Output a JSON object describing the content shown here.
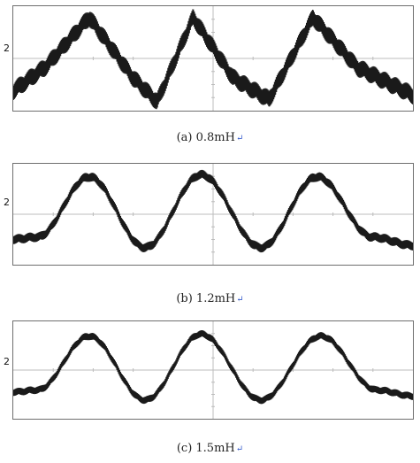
{
  "chart_data": [
    {
      "type": "line",
      "caption": "(a) 0.8mH",
      "channel_label": "2",
      "x": [
        0,
        0.08,
        0.19,
        0.3,
        0.36,
        0.45,
        0.55,
        0.64,
        0.75,
        0.86,
        1.0
      ],
      "y": [
        -0.75,
        -0.2,
        0.95,
        -0.45,
        -1.0,
        0.95,
        -0.45,
        -0.95,
        0.95,
        -0.2,
        -0.85
      ],
      "ripple": 0.22,
      "grid": true
    },
    {
      "type": "line",
      "caption": "(b) 1.2mH",
      "channel_label": "2",
      "x": [
        0,
        0.06,
        0.19,
        0.33,
        0.47,
        0.62,
        0.76,
        0.9,
        1.0
      ],
      "y": [
        -0.6,
        -0.55,
        0.9,
        -0.8,
        0.95,
        -0.8,
        0.9,
        -0.55,
        -0.75
      ],
      "ripple": 0.12,
      "grid": true
    },
    {
      "type": "line",
      "caption": "(c) 1.5mH",
      "channel_label": "2",
      "x": [
        0,
        0.06,
        0.19,
        0.33,
        0.47,
        0.62,
        0.77,
        0.91,
        1.0
      ],
      "y": [
        -0.55,
        -0.5,
        0.85,
        -0.75,
        0.9,
        -0.75,
        0.85,
        -0.5,
        -0.65
      ],
      "ripple": 0.1,
      "grid": true
    }
  ],
  "colors": {
    "trace": "#1a1a1a",
    "grid": "#bcbcbc",
    "frame": "#6e6e6e"
  }
}
